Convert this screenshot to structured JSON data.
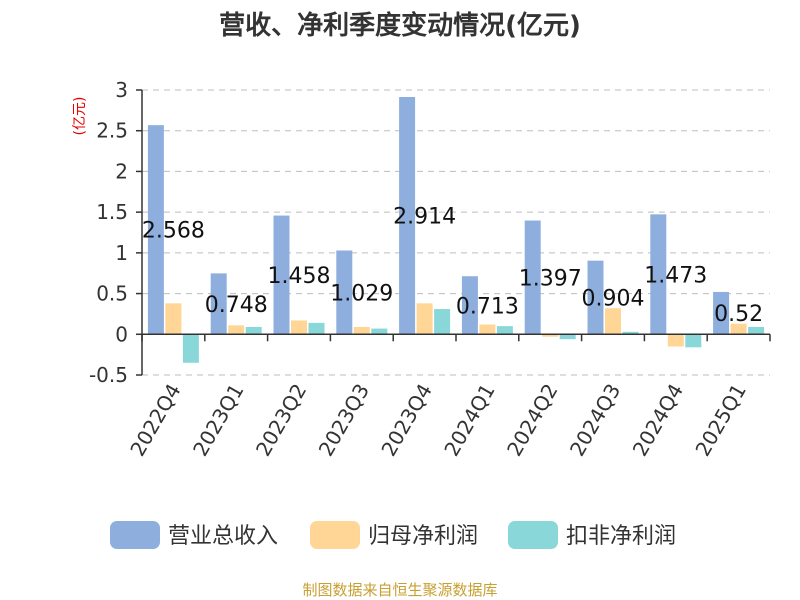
{
  "chart_data": {
    "type": "bar",
    "title": "营收、净利季度变动情况(亿元)",
    "ylabel": "(亿元)",
    "categories": [
      "2022Q4",
      "2023Q1",
      "2023Q2",
      "2023Q3",
      "2023Q4",
      "2024Q1",
      "2024Q2",
      "2024Q3",
      "2024Q4",
      "2025Q1"
    ],
    "series": [
      {
        "name": "营业总收入",
        "color": "#8eafdd",
        "values": [
          2.568,
          0.748,
          1.458,
          1.029,
          2.914,
          0.713,
          1.397,
          0.904,
          1.473,
          0.52
        ]
      },
      {
        "name": "归母净利润",
        "color": "#ffd695",
        "values": [
          0.38,
          0.11,
          0.17,
          0.09,
          0.38,
          0.12,
          -0.03,
          0.32,
          -0.15,
          0.13
        ]
      },
      {
        "name": "扣非净利润",
        "color": "#8ad7da",
        "values": [
          -0.35,
          0.09,
          0.14,
          0.07,
          0.31,
          0.1,
          -0.06,
          0.03,
          -0.16,
          0.09
        ]
      }
    ],
    "data_labels": [
      "2.568",
      "0.748",
      "1.458",
      "1.029",
      "2.914",
      "0.713",
      "1.397",
      "0.904",
      "1.473",
      "0.52"
    ],
    "yticks": [
      "-0.5",
      "0",
      "0.5",
      "1",
      "1.5",
      "2",
      "2.5",
      "3"
    ],
    "ylim": [
      -0.5,
      3
    ],
    "grid": true,
    "legend_position": "bottom"
  },
  "source": "制图数据来自恒生聚源数据库"
}
